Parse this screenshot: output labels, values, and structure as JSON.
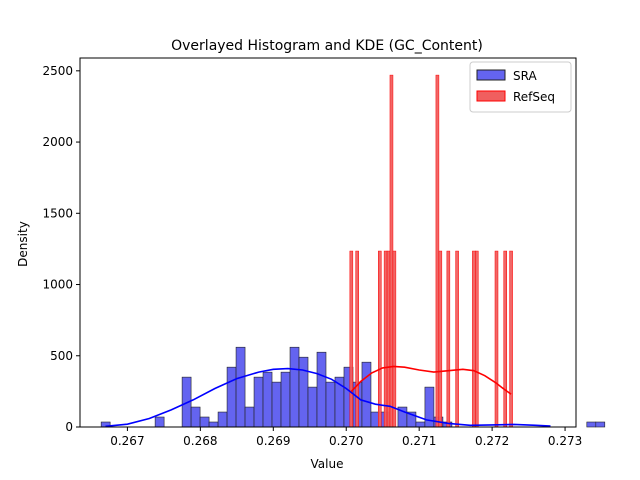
{
  "chart_data": {
    "type": "bar",
    "title": "Overlayed Histogram and KDE (GC_Content)",
    "xlabel": "Value",
    "ylabel": "Density",
    "xlim": [
      0.26635,
      0.27315
    ],
    "ylim": [
      0,
      2590
    ],
    "xticks": [
      "0.267",
      "0.268",
      "0.269",
      "0.270",
      "0.271",
      "0.272",
      "0.273"
    ],
    "yticks": [
      "0",
      "500",
      "1000",
      "1500",
      "2000",
      "2500"
    ],
    "legend_position": "top-right",
    "colors": {
      "sra_fill": "#6464f0",
      "sra_line": "#0000ff",
      "refseq_fill": "#f05f5f",
      "refseq_line": "#ff0000",
      "edge": "#222222"
    },
    "series": [
      {
        "name": "SRA",
        "type": "histogram",
        "bin_start": 0.26664,
        "bin_width": 0.0001233,
        "values": [
          35,
          0,
          0,
          0,
          0,
          0,
          70,
          0,
          0,
          350,
          140,
          70,
          35,
          105,
          420,
          560,
          140,
          350,
          385,
          315,
          385,
          560,
          490,
          280,
          525,
          315,
          350,
          420,
          315,
          455,
          105,
          105,
          0,
          140,
          105,
          35,
          280,
          70,
          35,
          0,
          0,
          0,
          0,
          0,
          0,
          0,
          0,
          0,
          0,
          0,
          0,
          0,
          0,
          0,
          35,
          35,
          0,
          0,
          0,
          0,
          0,
          0,
          0,
          0,
          0,
          0,
          0,
          0,
          0,
          0,
          0,
          0,
          0,
          0,
          0,
          0,
          0,
          0,
          0,
          0,
          0,
          35
        ]
      },
      {
        "name": "RefSeq",
        "type": "histogram",
        "bars": [
          {
            "x": 0.27007,
            "value": 1235
          },
          {
            "x": 0.27015,
            "value": 1235
          },
          {
            "x": 0.27046,
            "value": 1235
          },
          {
            "x": 0.27054,
            "value": 1235
          },
          {
            "x": 0.27058,
            "value": 1235
          },
          {
            "x": 0.27062,
            "value": 2470
          },
          {
            "x": 0.27066,
            "value": 1235
          },
          {
            "x": 0.27125,
            "value": 2470
          },
          {
            "x": 0.27129,
            "value": 1235
          },
          {
            "x": 0.2714,
            "value": 1235
          },
          {
            "x": 0.27152,
            "value": 1235
          },
          {
            "x": 0.27175,
            "value": 1235
          },
          {
            "x": 0.27179,
            "value": 1235
          },
          {
            "x": 0.27206,
            "value": 1235
          },
          {
            "x": 0.27218,
            "value": 1235
          },
          {
            "x": 0.27226,
            "value": 1235
          }
        ]
      }
    ],
    "kde": [
      {
        "name": "SRA",
        "x": [
          0.2667,
          0.267,
          0.2673,
          0.2676,
          0.2679,
          0.2682,
          0.2685,
          0.2688,
          0.269,
          0.2692,
          0.2694,
          0.2696,
          0.2698,
          0.27,
          0.2702,
          0.2704,
          0.2706,
          0.2708,
          0.2711,
          0.2714,
          0.2717,
          0.272,
          0.2723,
          0.2726,
          0.2728
        ],
        "y": [
          5,
          20,
          60,
          120,
          190,
          270,
          340,
          385,
          405,
          410,
          400,
          375,
          335,
          270,
          190,
          160,
          145,
          105,
          50,
          25,
          12,
          15,
          18,
          12,
          6
        ]
      },
      {
        "name": "RefSeq",
        "x": [
          0.27007,
          0.2702,
          0.27035,
          0.2705,
          0.27065,
          0.2708,
          0.271,
          0.2712,
          0.2714,
          0.2716,
          0.27175,
          0.2719,
          0.27205,
          0.27215,
          0.27226
        ],
        "y": [
          250,
          320,
          380,
          415,
          425,
          420,
          400,
          385,
          395,
          405,
          395,
          360,
          310,
          270,
          230
        ]
      }
    ]
  }
}
